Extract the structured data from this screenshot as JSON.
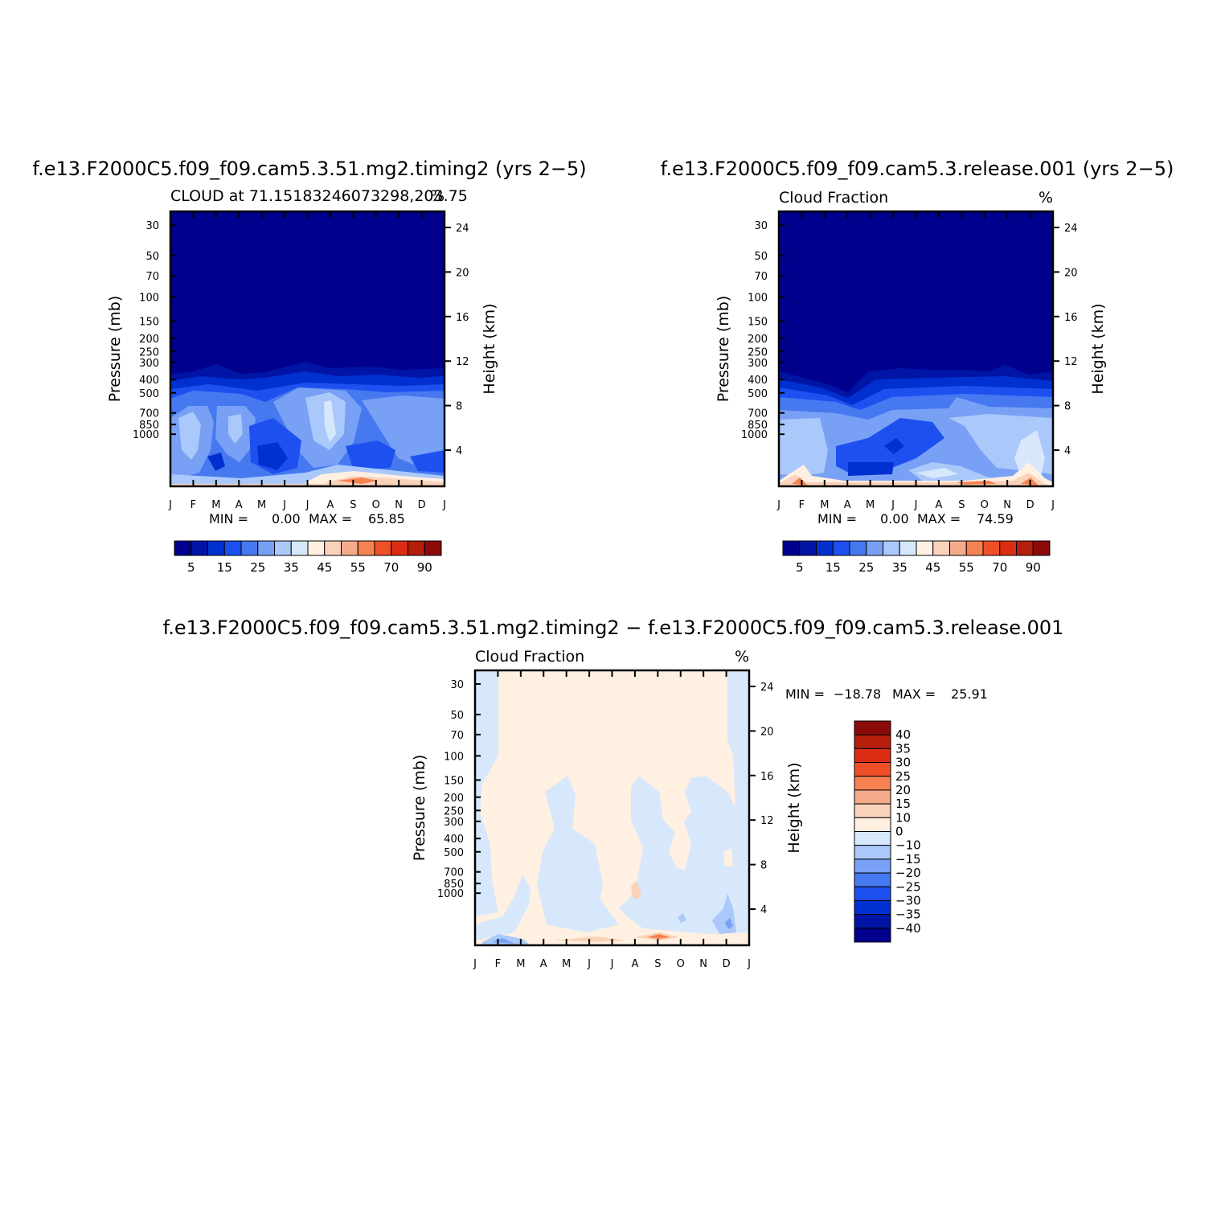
{
  "chart_data": [
    {
      "type": "heatmap",
      "title": "f.e13.F2000C5.f09_f09.cam5.3.51.mg2.timing2 (yrs 2−5)",
      "subtitle_left": "CLOUD at 71.15183246073298,203.75",
      "subtitle_right": "%",
      "ylabel": "Pressure (mb)",
      "ylabel_right": "Height (km)",
      "x_ticks": [
        "J",
        "F",
        "M",
        "A",
        "M",
        "J",
        "J",
        "A",
        "S",
        "O",
        "N",
        "D",
        "J"
      ],
      "y_ticks": [
        "30",
        "50",
        "70",
        "100",
        "150",
        "200",
        "250",
        "300",
        "400",
        "500",
        "700",
        "850",
        "1000"
      ],
      "y_ticks_right": [
        "24",
        "20",
        "16",
        "12",
        "8",
        "4"
      ],
      "min_label": "MIN =",
      "min_value": "0.00",
      "max_label": "MAX =",
      "max_value": "65.85",
      "min": 0.0,
      "max": 65.85,
      "colorbar_labels": [
        "5",
        "15",
        "25",
        "35",
        "45",
        "55",
        "70",
        "90"
      ],
      "colorbar_colors": [
        "#00008c",
        "#0014a5",
        "#0030d0",
        "#1e50f0",
        "#4678f0",
        "#78a0f5",
        "#aac8fa",
        "#d7e8fc",
        "#fff0e1",
        "#fad2b9",
        "#f5aa8c",
        "#f58250",
        "#f05028",
        "#dc2d14",
        "#b41e0a",
        "#8c0a0a"
      ]
    },
    {
      "type": "heatmap",
      "title": "f.e13.F2000C5.f09_f09.cam5.3.release.001 (yrs 2−5)",
      "subtitle_left": "Cloud Fraction",
      "subtitle_right": "%",
      "ylabel": "Pressure (mb)",
      "ylabel_right": "Height (km)",
      "x_ticks": [
        "J",
        "F",
        "M",
        "A",
        "M",
        "J",
        "J",
        "A",
        "S",
        "O",
        "N",
        "D",
        "J"
      ],
      "y_ticks": [
        "30",
        "50",
        "70",
        "100",
        "150",
        "200",
        "250",
        "300",
        "400",
        "500",
        "700",
        "850",
        "1000"
      ],
      "y_ticks_right": [
        "24",
        "20",
        "16",
        "12",
        "8",
        "4"
      ],
      "min_label": "MIN =",
      "min_value": "0.00",
      "max_label": "MAX =",
      "max_value": "74.59",
      "min": 0.0,
      "max": 74.59,
      "colorbar_labels": [
        "5",
        "15",
        "25",
        "35",
        "45",
        "55",
        "70",
        "90"
      ],
      "colorbar_colors": [
        "#00008c",
        "#0014a5",
        "#0030d0",
        "#1e50f0",
        "#4678f0",
        "#78a0f5",
        "#aac8fa",
        "#d7e8fc",
        "#fff0e1",
        "#fad2b9",
        "#f5aa8c",
        "#f58250",
        "#f05028",
        "#dc2d14",
        "#b41e0a",
        "#8c0a0a"
      ]
    },
    {
      "type": "heatmap",
      "title": "f.e13.F2000C5.f09_f09.cam5.3.51.mg2.timing2 − f.e13.F2000C5.f09_f09.cam5.3.release.001",
      "subtitle_left": "Cloud Fraction",
      "subtitle_right": "%",
      "ylabel": "Pressure (mb)",
      "ylabel_right": "Height (km)",
      "x_ticks": [
        "J",
        "F",
        "M",
        "A",
        "M",
        "J",
        "J",
        "A",
        "S",
        "O",
        "N",
        "D",
        "J"
      ],
      "y_ticks": [
        "30",
        "50",
        "70",
        "100",
        "150",
        "200",
        "250",
        "300",
        "400",
        "500",
        "700",
        "850",
        "1000"
      ],
      "y_ticks_right": [
        "24",
        "20",
        "16",
        "12",
        "8",
        "4"
      ],
      "min_label": "MIN =",
      "min_value": "−18.78",
      "max_label": "MAX =",
      "max_value": "25.91",
      "min": -18.78,
      "max": 25.91,
      "colorbar_labels": [
        "40",
        "35",
        "30",
        "25",
        "20",
        "15",
        "10",
        "0",
        "−10",
        "−15",
        "−20",
        "−25",
        "−30",
        "−35",
        "−40"
      ],
      "colorbar_colors": [
        "#8c0a0a",
        "#b41e0a",
        "#dc2d14",
        "#f05028",
        "#f58250",
        "#f5aa8c",
        "#fad2b9",
        "#fff0e1",
        "#d7e8fc",
        "#aac8fa",
        "#78a0f5",
        "#4678f0",
        "#1e50f0",
        "#0030d0",
        "#0014a5",
        "#00008c"
      ]
    }
  ]
}
